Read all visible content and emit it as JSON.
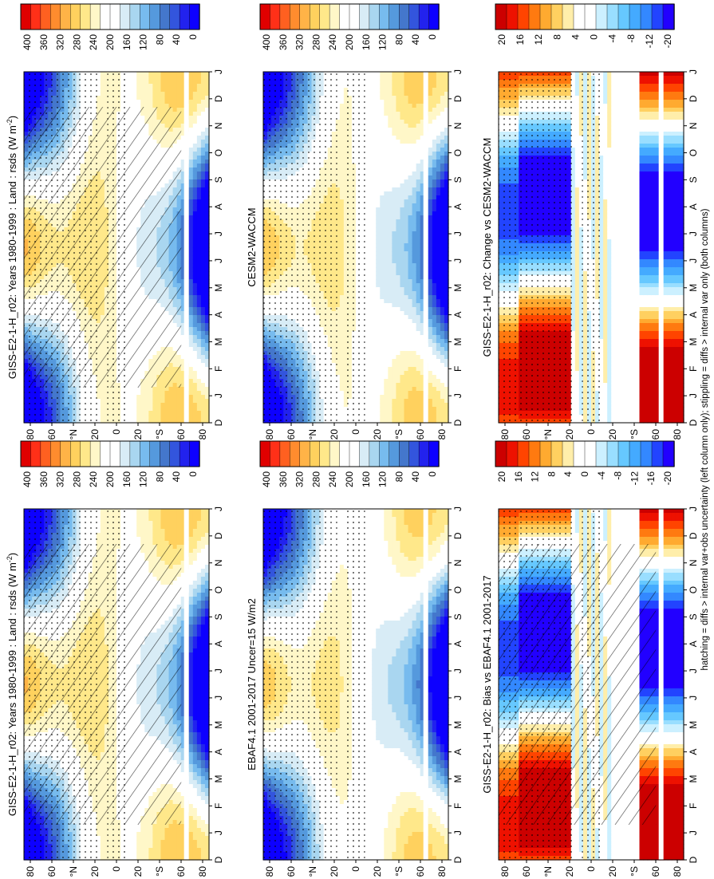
{
  "figure": {
    "footnote": "hatching = diffs > internal var+obs uncertainty (left column only); stippling = diffs > internal var only (both columns)"
  },
  "colors": {
    "abs_scale": [
      "#0d00ff",
      "#2222ee",
      "#3355dd",
      "#4477cc",
      "#5599dd",
      "#77bbee",
      "#a9d6f0",
      "#d8ecf6",
      "#ffffff",
      "#ffffff",
      "#fff7c8",
      "#ffe88a",
      "#ffd15e",
      "#ffb347",
      "#ff8c2e",
      "#ff6020",
      "#ff3018",
      "#e00000"
    ],
    "diff_scale": [
      "#2200ff",
      "#2244ff",
      "#3388ff",
      "#44aaff",
      "#66c8ff",
      "#99deff",
      "#ccf0ff",
      "#ffffff",
      "#ffffff",
      "#ffeeaa",
      "#ffd060",
      "#ffaa30",
      "#ff7a10",
      "#ff4400",
      "#ee1100",
      "#cc0000"
    ]
  },
  "chart_data": [
    {
      "id": "p1",
      "type": "heatmap",
      "scale": "abs",
      "title": "GISS-E2-1-H_r02: Years 1980-1999 : Land : rsds (W m",
      "title_sup": "-2",
      "title_close": ")",
      "x_ticks": [
        "D",
        "J",
        "F",
        "M",
        "A",
        "M",
        "J",
        "J",
        "A",
        "S",
        "O",
        "N",
        "D",
        "J"
      ],
      "y_ticks": [
        "80",
        "60",
        "°N",
        "20",
        "0",
        "20",
        "°S",
        "60",
        "80"
      ],
      "colorbar": [
        "400",
        "360",
        "320",
        "280",
        "240",
        "200",
        "160",
        "120",
        "80",
        "40",
        "0"
      ],
      "field": {
        "seasonal_amp": 175,
        "base": 235,
        "polar_drop": 210,
        "south_band_offset": 40
      }
    },
    {
      "id": "p2",
      "type": "heatmap",
      "scale": "abs",
      "title": "GISS-E2-1-H_r02: Years 1980-1999 : Land : rsds (W m",
      "title_sup": "-2",
      "title_close": ")",
      "x_ticks": [
        "D",
        "J",
        "F",
        "M",
        "A",
        "M",
        "J",
        "J",
        "A",
        "S",
        "O",
        "N",
        "D",
        "J"
      ],
      "y_ticks": [
        "80",
        "60",
        "°N",
        "20",
        "0",
        "20",
        "°S",
        "60",
        "80"
      ],
      "colorbar": [
        "400",
        "360",
        "320",
        "280",
        "240",
        "200",
        "160",
        "120",
        "80",
        "40",
        "0"
      ],
      "field": {
        "seasonal_amp": 175,
        "base": 235,
        "polar_drop": 210,
        "south_band_offset": 40
      }
    },
    {
      "id": "p3",
      "type": "heatmap",
      "scale": "abs",
      "title": "CESM2-WACCM",
      "title_sup": "",
      "title_close": "",
      "x_ticks": [
        "D",
        "J",
        "F",
        "M",
        "A",
        "M",
        "J",
        "J",
        "A",
        "S",
        "O",
        "N",
        "D",
        "J"
      ],
      "y_ticks": [
        "80",
        "60",
        "°N",
        "20",
        "0",
        "20",
        "°S",
        "60",
        "80"
      ],
      "colorbar": [
        "400",
        "360",
        "320",
        "280",
        "240",
        "200",
        "160",
        "120",
        "80",
        "40",
        "0"
      ],
      "field": {
        "seasonal_amp": 175,
        "base": 230,
        "polar_drop": 205,
        "south_band_offset": 40
      }
    },
    {
      "id": "p4",
      "type": "heatmap",
      "scale": "abs",
      "title": "EBAF4.1 2001-2017 Uncer=15 W/m2",
      "title_sup": "",
      "title_close": "",
      "x_ticks": [
        "D",
        "J",
        "F",
        "M",
        "A",
        "M",
        "J",
        "J",
        "A",
        "S",
        "O",
        "N",
        "D",
        "J"
      ],
      "y_ticks": [
        "80",
        "60",
        "°N",
        "20",
        "0",
        "20",
        "°S",
        "60",
        "80"
      ],
      "colorbar": [
        "400",
        "360",
        "320",
        "280",
        "240",
        "200",
        "160",
        "120",
        "80",
        "40",
        "0"
      ],
      "field": {
        "seasonal_amp": 175,
        "base": 225,
        "polar_drop": 200,
        "south_band_offset": 40
      }
    },
    {
      "id": "p5",
      "type": "heatmap",
      "scale": "diff",
      "title": "GISS-E2-1-H_r02: Change vs CESM2-WACCM",
      "title_sup": "",
      "title_close": "",
      "x_ticks": [
        "D",
        "J",
        "F",
        "M",
        "A",
        "M",
        "J",
        "J",
        "A",
        "S",
        "O",
        "N",
        "D",
        "J"
      ],
      "y_ticks": [
        "80",
        "60",
        "°N",
        "20",
        "0",
        "20",
        "°S",
        "60",
        "80"
      ],
      "colorbar": [
        "20",
        "16",
        "12",
        "8",
        "4",
        "0",
        "-4",
        "-8",
        "-12",
        "-20"
      ],
      "field": {
        "seasonal_amp": 28,
        "base": 0
      }
    },
    {
      "id": "p6",
      "type": "heatmap",
      "scale": "diff",
      "title": "GISS-E2-1-H_r02: Bias vs EBAF4.1 2001-2017",
      "title_sup": "",
      "title_close": "",
      "x_ticks": [
        "D",
        "J",
        "F",
        "M",
        "A",
        "M",
        "J",
        "J",
        "A",
        "S",
        "O",
        "N",
        "D",
        "J"
      ],
      "y_ticks": [
        "80",
        "60",
        "°N",
        "20",
        "0",
        "20",
        "°S",
        "60",
        "80"
      ],
      "colorbar": [
        "20",
        "16",
        "12",
        "8",
        "4",
        "0",
        "-4",
        "-8",
        "-12",
        "-16",
        "-20"
      ],
      "field": {
        "seasonal_amp": 28,
        "base": 0
      }
    }
  ]
}
